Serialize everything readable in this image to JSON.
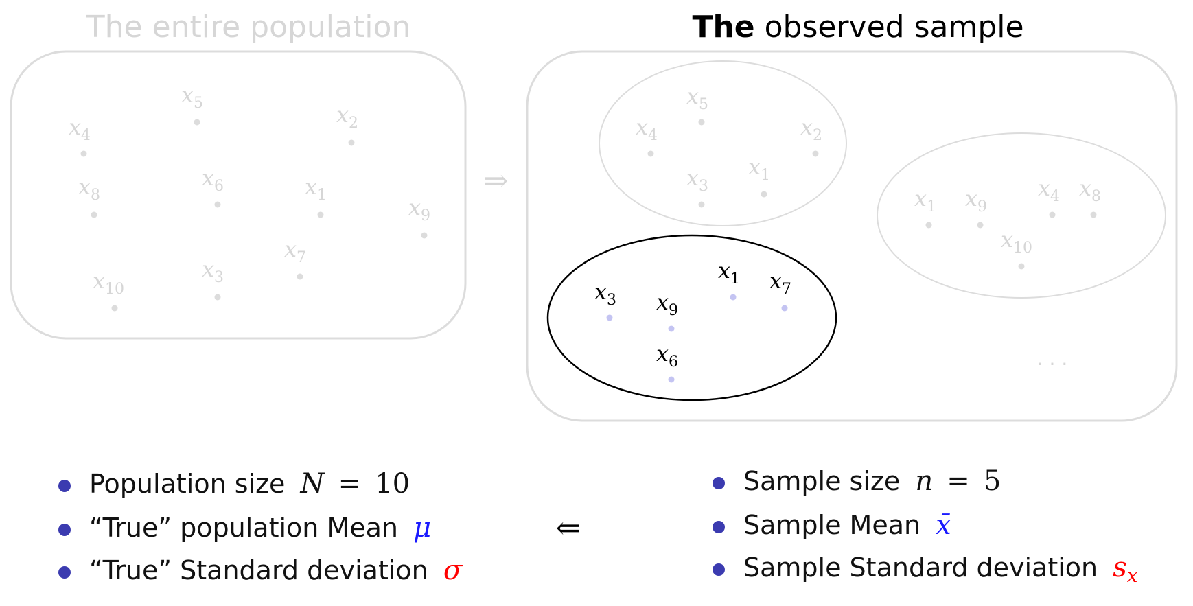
{
  "population": {
    "title": "The entire population",
    "points": [
      {
        "sub": "4"
      },
      {
        "sub": "5"
      },
      {
        "sub": "2"
      },
      {
        "sub": "8"
      },
      {
        "sub": "6"
      },
      {
        "sub": "1"
      },
      {
        "sub": "9"
      },
      {
        "sub": "10"
      },
      {
        "sub": "3"
      },
      {
        "sub": "7"
      }
    ]
  },
  "samples": {
    "title_bold": "The",
    "title_rest": "observed sample",
    "sample_a": [
      {
        "sub": "4"
      },
      {
        "sub": "5"
      },
      {
        "sub": "2"
      },
      {
        "sub": "3"
      },
      {
        "sub": "1"
      }
    ],
    "sample_b": [
      {
        "sub": "1"
      },
      {
        "sub": "9"
      },
      {
        "sub": "4"
      },
      {
        "sub": "8"
      },
      {
        "sub": "10"
      }
    ],
    "observed": [
      {
        "sub": "3"
      },
      {
        "sub": "9"
      },
      {
        "sub": "1"
      },
      {
        "sub": "7"
      },
      {
        "sub": "6"
      }
    ],
    "ellipsis": "· · ·"
  },
  "arrows": {
    "right": "⇒",
    "left": "⇐"
  },
  "population_params": {
    "size_label": "Population size",
    "size_symbol": "N",
    "size_value": "10",
    "mean_label": "“True” population Mean",
    "mean_symbol": "μ",
    "sd_label": "“True” Standard deviation",
    "sd_symbol": "σ"
  },
  "sample_stats": {
    "size_label": "Sample size",
    "size_symbol": "n",
    "size_value": "5",
    "mean_label": "Sample Mean",
    "mean_symbol": "x̄",
    "sd_label": "Sample Standard deviation",
    "sd_symbol": "s",
    "sd_sub": "x"
  },
  "colors": {
    "faded": "#dcdcdc",
    "faded_text": "#d6d6d6",
    "black": "#000000",
    "bullet": "#3b3bb0",
    "blue": "#1a1aff",
    "red": "#ff0000",
    "point_blue": "#c4c4f2"
  }
}
